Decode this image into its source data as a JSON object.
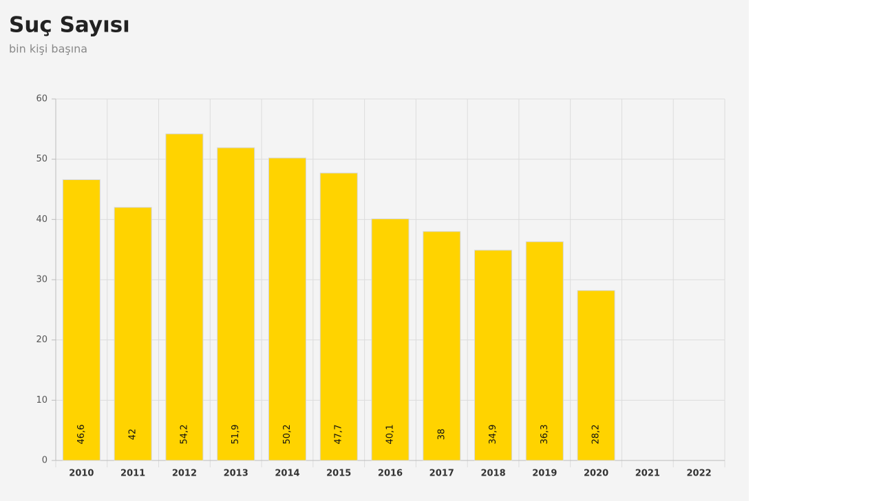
{
  "chart_data": {
    "type": "bar",
    "title": "Suç Sayısı",
    "subtitle": "bin kişi başına",
    "categories": [
      "2010",
      "2011",
      "2012",
      "2013",
      "2014",
      "2015",
      "2016",
      "2017",
      "2018",
      "2019",
      "2020",
      "2021",
      "2022"
    ],
    "values": [
      46.6,
      42,
      54.2,
      51.9,
      50.2,
      47.7,
      40.1,
      38,
      34.9,
      36.3,
      28.2,
      null,
      null
    ],
    "value_labels": [
      "46,6",
      "42",
      "54,2",
      "51,9",
      "50,2",
      "47,7",
      "40,1",
      "38",
      "34,9",
      "36,3",
      "28,2",
      null,
      null
    ],
    "color": "#ffd300",
    "ylim": [
      0,
      60
    ],
    "yticks": [
      0,
      10,
      20,
      30,
      40,
      50,
      60
    ],
    "grid": true
  }
}
